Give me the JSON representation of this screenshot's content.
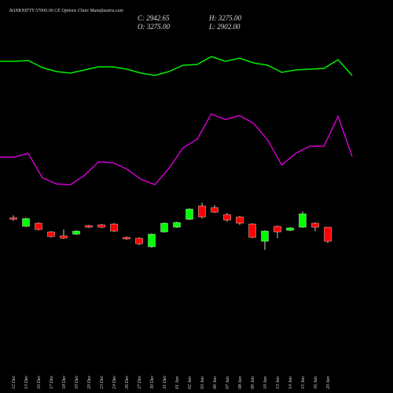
{
  "chart_data": {
    "type": "candlestick",
    "title": "BANKNIFTY 57000.00 CE Options Chart Munafasutra.com",
    "header": [
      "C: 2942.65",
      "H: 3275.00",
      "O: 3275.00",
      "L: 2902.00"
    ],
    "categories": [
      "12 Dec",
      "13 Dec",
      "16 Dec",
      "17 Dec",
      "18 Dec",
      "19 Dec",
      "20 Dec",
      "23 Dec",
      "24 Dec",
      "26 Dec",
      "27 Dec",
      "30 Dec",
      "31 Dec",
      "01 Jan",
      "02 Jan",
      "03 Jan",
      "06 Jan",
      "07 Jan",
      "08 Jan",
      "09 Jan",
      "10 Jan",
      "13 Jan",
      "14 Jan",
      "15 Jan",
      "16 Jan",
      "20 Jan"
    ],
    "open": [
      3497,
      3294,
      3368,
      3164,
      3072,
      3109,
      3312,
      3331,
      3349,
      3035,
      3016,
      2813,
      3164,
      3275,
      3460,
      3775,
      3738,
      3571,
      3516,
      3349,
      2942,
      3294,
      3201,
      3275,
      3368,
      3275
    ],
    "close": [
      3460,
      3479,
      3220,
      3053,
      3016,
      3183,
      3275,
      3275,
      3183,
      2998,
      2886,
      3109,
      3368,
      3386,
      3701,
      3516,
      3627,
      3442,
      3368,
      3035,
      3183,
      3164,
      3257,
      3590,
      3275,
      2942.65
    ],
    "high": [
      3552,
      3497,
      3386,
      3183,
      3220,
      3201,
      3331,
      3349,
      3368,
      3053,
      3035,
      3127,
      3386,
      3405,
      3719,
      3849,
      3793,
      3608,
      3534,
      3368,
      3201,
      3312,
      3275,
      3645,
      3386,
      3275
    ],
    "low": [
      3423,
      3275,
      3201,
      3035,
      2998,
      3090,
      3257,
      3257,
      3164,
      2979,
      2850,
      2794,
      3146,
      3257,
      3442,
      3479,
      3608,
      3405,
      3331,
      3016,
      2739,
      3016,
      3183,
      3257,
      3183,
      2902
    ],
    "up_color": "#00ff00",
    "down_color": "#ff0000",
    "lines": [
      {
        "color": "#00ee00",
        "values": [
          422,
          422,
          423,
          414,
          409,
          407,
          411,
          415,
          415,
          412,
          407,
          404,
          409,
          417,
          418,
          428,
          422,
          426,
          420,
          417,
          408,
          411,
          412,
          413,
          424,
          404
        ]
      },
      {
        "color": "#cc00cc",
        "values": [
          300,
          300,
          305,
          274,
          266,
          265,
          277,
          294,
          293,
          285,
          272,
          265,
          286,
          312,
          323,
          355,
          348,
          353,
          343,
          322,
          290,
          305,
          314,
          314,
          352,
          301
        ]
      }
    ]
  }
}
